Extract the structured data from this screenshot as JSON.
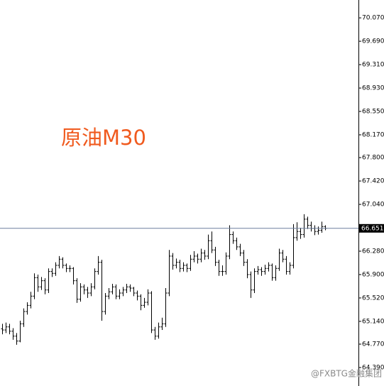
{
  "chart_data": {
    "type": "ohlc",
    "annotation": "原油M30",
    "annotation_color": "#f05a1e",
    "watermark": "@FXBTG金融集团",
    "color": "#000000",
    "price_line_color": "#6d7f9e",
    "ylim": [
      64.09,
      70.36
    ],
    "yticks": [
      {
        "value": 70.07,
        "label": "70.070"
      },
      {
        "value": 69.69,
        "label": "69.690"
      },
      {
        "value": 69.31,
        "label": "69.310"
      },
      {
        "value": 68.93,
        "label": "68.930"
      },
      {
        "value": 68.55,
        "label": "68.550"
      },
      {
        "value": 68.17,
        "label": "68.170"
      },
      {
        "value": 67.8,
        "label": "67.800"
      },
      {
        "value": 67.42,
        "label": "67.420"
      },
      {
        "value": 67.04,
        "label": "67.040"
      },
      {
        "value": 66.28,
        "label": "66.280"
      },
      {
        "value": 65.9,
        "label": "65.900"
      },
      {
        "value": 65.52,
        "label": "65.520"
      },
      {
        "value": 65.14,
        "label": "65.140"
      },
      {
        "value": 64.77,
        "label": "64.770"
      },
      {
        "value": 64.39,
        "label": "64.390"
      }
    ],
    "current_price": {
      "value": 66.651,
      "label": "66.651"
    },
    "open": [
      65.02,
      65.0,
      65.05,
      64.98,
      64.9,
      64.82,
      65.1,
      65.3,
      65.4,
      65.55,
      65.85,
      65.7,
      65.8,
      65.65,
      65.95,
      65.92,
      66.05,
      66.15,
      66.05,
      66.0,
      66.0,
      65.8,
      65.5,
      65.7,
      65.65,
      65.6,
      65.7,
      65.95,
      66.1,
      65.3,
      65.55,
      65.62,
      65.7,
      65.55,
      65.6,
      65.65,
      65.7,
      65.68,
      65.6,
      65.55,
      65.4,
      65.45,
      65.6,
      65.0,
      64.9,
      65.05,
      65.1,
      65.6,
      66.2,
      66.05,
      66.1,
      66.0,
      66.05,
      66.0,
      66.15,
      66.2,
      66.15,
      66.25,
      66.2,
      66.45,
      66.3,
      66.1,
      65.95,
      65.95,
      66.2,
      66.55,
      66.45,
      66.35,
      66.25,
      66.1,
      65.9,
      65.65,
      65.95,
      65.98,
      65.95,
      66.0,
      66.05,
      65.85,
      66.0,
      66.25,
      66.15,
      65.95,
      66.05,
      66.5,
      66.6,
      66.55,
      66.8,
      66.7,
      66.65,
      66.6,
      66.62,
      66.68
    ],
    "high": [
      65.1,
      65.12,
      65.1,
      65.03,
      64.95,
      65.15,
      65.35,
      65.45,
      65.62,
      65.92,
      65.9,
      65.86,
      65.84,
      66.0,
      66.0,
      66.1,
      66.2,
      66.18,
      66.08,
      66.05,
      66.02,
      65.84,
      65.76,
      65.74,
      65.7,
      65.76,
      66.0,
      66.2,
      66.14,
      65.6,
      65.68,
      65.75,
      65.74,
      65.66,
      65.7,
      65.75,
      65.74,
      65.7,
      65.64,
      65.58,
      65.52,
      65.66,
      65.63,
      65.05,
      65.12,
      65.2,
      65.68,
      66.3,
      66.25,
      66.16,
      66.14,
      66.1,
      66.08,
      66.22,
      66.28,
      66.24,
      66.32,
      66.3,
      66.55,
      66.6,
      66.35,
      66.14,
      66.05,
      66.26,
      66.7,
      66.6,
      66.5,
      66.4,
      66.3,
      66.15,
      65.95,
      66.0,
      66.04,
      66.02,
      66.06,
      66.1,
      66.08,
      66.05,
      66.32,
      66.3,
      66.2,
      66.1,
      66.72,
      66.75,
      66.66,
      66.88,
      66.84,
      66.76,
      66.7,
      66.68,
      66.76,
      66.7
    ],
    "low": [
      64.93,
      64.95,
      64.93,
      64.84,
      64.76,
      64.8,
      65.05,
      65.25,
      65.35,
      65.5,
      65.62,
      65.65,
      65.58,
      65.6,
      65.86,
      65.88,
      66.0,
      66.0,
      65.94,
      65.94,
      65.74,
      65.44,
      65.46,
      65.58,
      65.52,
      65.55,
      65.66,
      65.9,
      65.15,
      65.25,
      65.5,
      65.58,
      65.5,
      65.5,
      65.55,
      65.6,
      65.62,
      65.55,
      65.48,
      65.32,
      65.36,
      65.4,
      64.95,
      64.84,
      64.86,
      65.0,
      65.05,
      65.55,
      65.98,
      66.0,
      65.94,
      65.95,
      65.94,
      65.96,
      66.1,
      66.08,
      66.1,
      66.14,
      66.15,
      66.25,
      66.04,
      65.88,
      65.88,
      65.9,
      66.15,
      66.4,
      66.3,
      66.2,
      66.04,
      65.84,
      65.52,
      65.6,
      65.9,
      65.88,
      65.9,
      65.95,
      65.8,
      65.8,
      65.96,
      66.1,
      65.9,
      65.9,
      66.0,
      66.45,
      66.48,
      66.5,
      66.64,
      66.6,
      66.54,
      66.55,
      66.58,
      66.62
    ],
    "close": [
      65.0,
      65.05,
      64.98,
      64.9,
      64.82,
      65.1,
      65.3,
      65.4,
      65.55,
      65.85,
      65.7,
      65.8,
      65.65,
      65.95,
      65.92,
      66.05,
      66.15,
      66.05,
      66.0,
      66.0,
      65.8,
      65.5,
      65.7,
      65.65,
      65.6,
      65.7,
      65.95,
      66.1,
      65.3,
      65.55,
      65.62,
      65.7,
      65.55,
      65.6,
      65.65,
      65.7,
      65.68,
      65.6,
      65.55,
      65.4,
      65.45,
      65.6,
      65.0,
      64.9,
      65.05,
      65.1,
      65.6,
      66.2,
      66.05,
      66.1,
      66.0,
      66.05,
      66.0,
      66.15,
      66.2,
      66.15,
      66.25,
      66.2,
      66.45,
      66.3,
      66.1,
      65.95,
      65.95,
      66.2,
      66.55,
      66.45,
      66.35,
      66.25,
      66.1,
      65.9,
      65.65,
      65.95,
      65.98,
      65.95,
      66.0,
      66.05,
      65.85,
      66.0,
      66.25,
      66.15,
      65.95,
      66.05,
      66.5,
      66.6,
      66.55,
      66.8,
      66.7,
      66.65,
      66.6,
      66.62,
      66.68,
      66.651
    ]
  }
}
